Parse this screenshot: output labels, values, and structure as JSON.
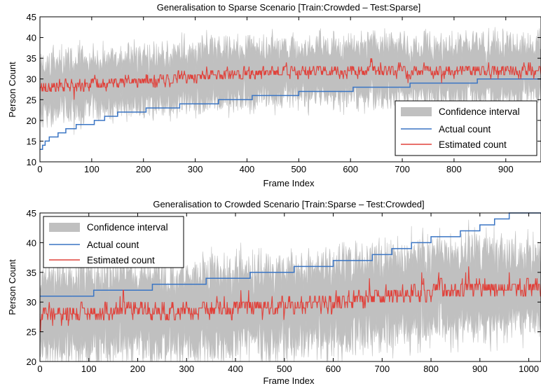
{
  "colors": {
    "confidence": "#c0c0c0",
    "actual": "#3a75c4",
    "estimated": "#e0413a"
  },
  "chart_data": [
    {
      "type": "line",
      "title": "Generalisation to Sparse Scenario [Train:Crowded – Test:Sparse]",
      "xlabel": "Frame Index",
      "ylabel": "Person Count",
      "xlim": [
        0,
        968
      ],
      "ylim": [
        10,
        45
      ],
      "xticks": [
        0,
        100,
        200,
        300,
        400,
        500,
        600,
        700,
        800,
        900
      ],
      "yticks": [
        10,
        15,
        20,
        25,
        30,
        35,
        40,
        45
      ],
      "legend_position": "bottom-right",
      "series": [
        {
          "name": "Confidence interval",
          "kind": "band",
          "mean_level": 31,
          "half_width": 6
        },
        {
          "name": "Actual count",
          "kind": "step",
          "steps": [
            [
              0,
              13
            ],
            [
              5,
              14
            ],
            [
              10,
              15
            ],
            [
              18,
              16
            ],
            [
              35,
              17
            ],
            [
              50,
              18
            ],
            [
              70,
              19
            ],
            [
              105,
              20
            ],
            [
              125,
              21
            ],
            [
              150,
              22
            ],
            [
              205,
              23
            ],
            [
              235,
              23
            ],
            [
              270,
              24
            ],
            [
              330,
              24
            ],
            [
              345,
              25
            ],
            [
              410,
              26
            ],
            [
              500,
              27
            ],
            [
              605,
              28
            ],
            [
              715,
              29
            ],
            [
              845,
              30
            ],
            [
              968,
              30
            ]
          ]
        },
        {
          "name": "Estimated count",
          "kind": "noisy",
          "segments": [
            [
              0,
              28
            ],
            [
              150,
              29
            ],
            [
              250,
              30
            ],
            [
              350,
              31
            ],
            [
              450,
              31.5
            ],
            [
              550,
              32
            ],
            [
              700,
              32
            ],
            [
              968,
              32
            ]
          ]
        }
      ]
    },
    {
      "type": "line",
      "title": "Generalisation to Crowded Scenario [Train:Sparse – Test:Crowded]",
      "xlabel": "Frame Index",
      "ylabel": "Person Count",
      "xlim": [
        0,
        1025
      ],
      "ylim": [
        20,
        45
      ],
      "xticks": [
        0,
        100,
        200,
        300,
        400,
        500,
        600,
        700,
        800,
        900,
        1000
      ],
      "yticks": [
        20,
        25,
        30,
        35,
        40,
        45
      ],
      "legend_position": "top-left",
      "series": [
        {
          "name": "Confidence interval",
          "kind": "band",
          "mean_level": 30,
          "half_width": 6
        },
        {
          "name": "Actual count",
          "kind": "step",
          "steps": [
            [
              0,
              31
            ],
            [
              110,
              32
            ],
            [
              230,
              33
            ],
            [
              340,
              34
            ],
            [
              430,
              35
            ],
            [
              520,
              36
            ],
            [
              600,
              37
            ],
            [
              680,
              38
            ],
            [
              720,
              39
            ],
            [
              760,
              40
            ],
            [
              800,
              41
            ],
            [
              860,
              42
            ],
            [
              900,
              43
            ],
            [
              930,
              44
            ],
            [
              960,
              45
            ],
            [
              1025,
              45
            ]
          ]
        },
        {
          "name": "Estimated count",
          "kind": "noisy",
          "segments": [
            [
              0,
              28.5
            ],
            [
              300,
              28.5
            ],
            [
              500,
              29.5
            ],
            [
              650,
              30.5
            ],
            [
              800,
              32
            ],
            [
              1025,
              32.5
            ]
          ]
        }
      ]
    }
  ]
}
